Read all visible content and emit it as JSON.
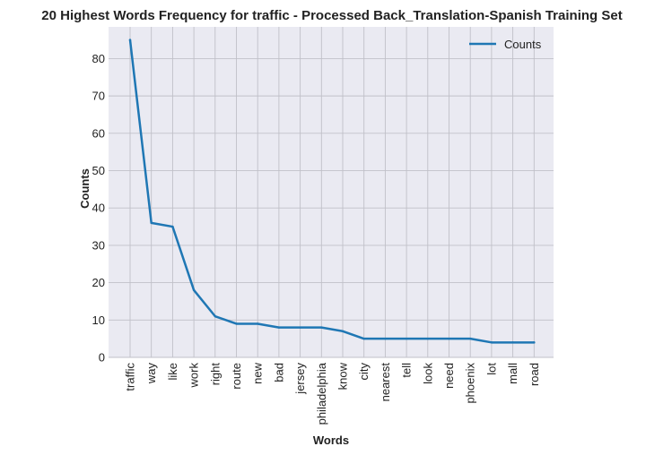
{
  "chart_data": {
    "type": "line",
    "title": "20 Highest Words Frequency for traffic - Processed Back_Translation-Spanish Training Set",
    "xlabel": "Words",
    "ylabel": "Counts",
    "categories": [
      "traffic",
      "way",
      "like",
      "work",
      "right",
      "route",
      "new",
      "bad",
      "jersey",
      "philadelphia",
      "know",
      "city",
      "nearest",
      "tell",
      "look",
      "need",
      "phoenix",
      "lot",
      "mall",
      "road"
    ],
    "series": [
      {
        "name": "Counts",
        "values": [
          85,
          36,
          35,
          18,
          11,
          9,
          9,
          8,
          8,
          8,
          7,
          5,
          5,
          5,
          5,
          5,
          5,
          4,
          4,
          4
        ]
      }
    ],
    "y_ticks": [
      0,
      10,
      20,
      30,
      40,
      50,
      60,
      70,
      80
    ],
    "ylim": [
      0,
      88.5
    ],
    "grid": true,
    "legend_position": "top-right"
  },
  "colors": {
    "background": "#eaeaf2",
    "grid": "#c0c0c8",
    "line": "#1f77b4"
  }
}
